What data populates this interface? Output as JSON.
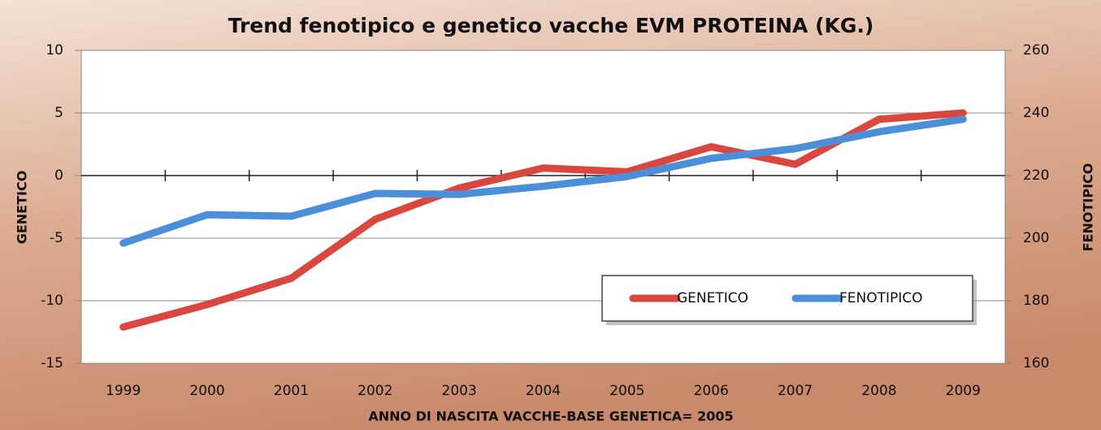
{
  "chart_data": {
    "type": "line",
    "title": "Trend fenotipico e genetico vacche EVM PROTEINA (KG.)",
    "xlabel": "ANNO DI NASCITA VACCHE-BASE GENETICA= 2005",
    "ylabel": "GENETICO",
    "y2label": "FENOTIPICO",
    "categories": [
      "1999",
      "2000",
      "2001",
      "2002",
      "2003",
      "2004",
      "2005",
      "2006",
      "2007",
      "2008",
      "2009"
    ],
    "series": [
      {
        "name": "GENETICO",
        "color": "#d9473f",
        "values": [
          -12.1,
          -10.3,
          -8.2,
          -3.5,
          -1.0,
          0.6,
          0.3,
          2.3,
          0.9,
          4.5,
          5.0
        ]
      },
      {
        "name": "FENOTIPICO",
        "color": "#4b8fd8",
        "axis": "y2",
        "values": [
          198.4,
          207.5,
          207.0,
          214.3,
          214.0,
          216.6,
          219.7,
          225.5,
          228.6,
          234.0,
          238.0
        ]
      }
    ],
    "ylim": [
      -15,
      10
    ],
    "yticks": [
      -15,
      -10,
      -5,
      0,
      5,
      10
    ],
    "y2lim": [
      160,
      260
    ],
    "y2ticks": [
      160,
      180,
      200,
      220,
      240,
      260
    ],
    "grid": true,
    "legend": "lower right"
  }
}
